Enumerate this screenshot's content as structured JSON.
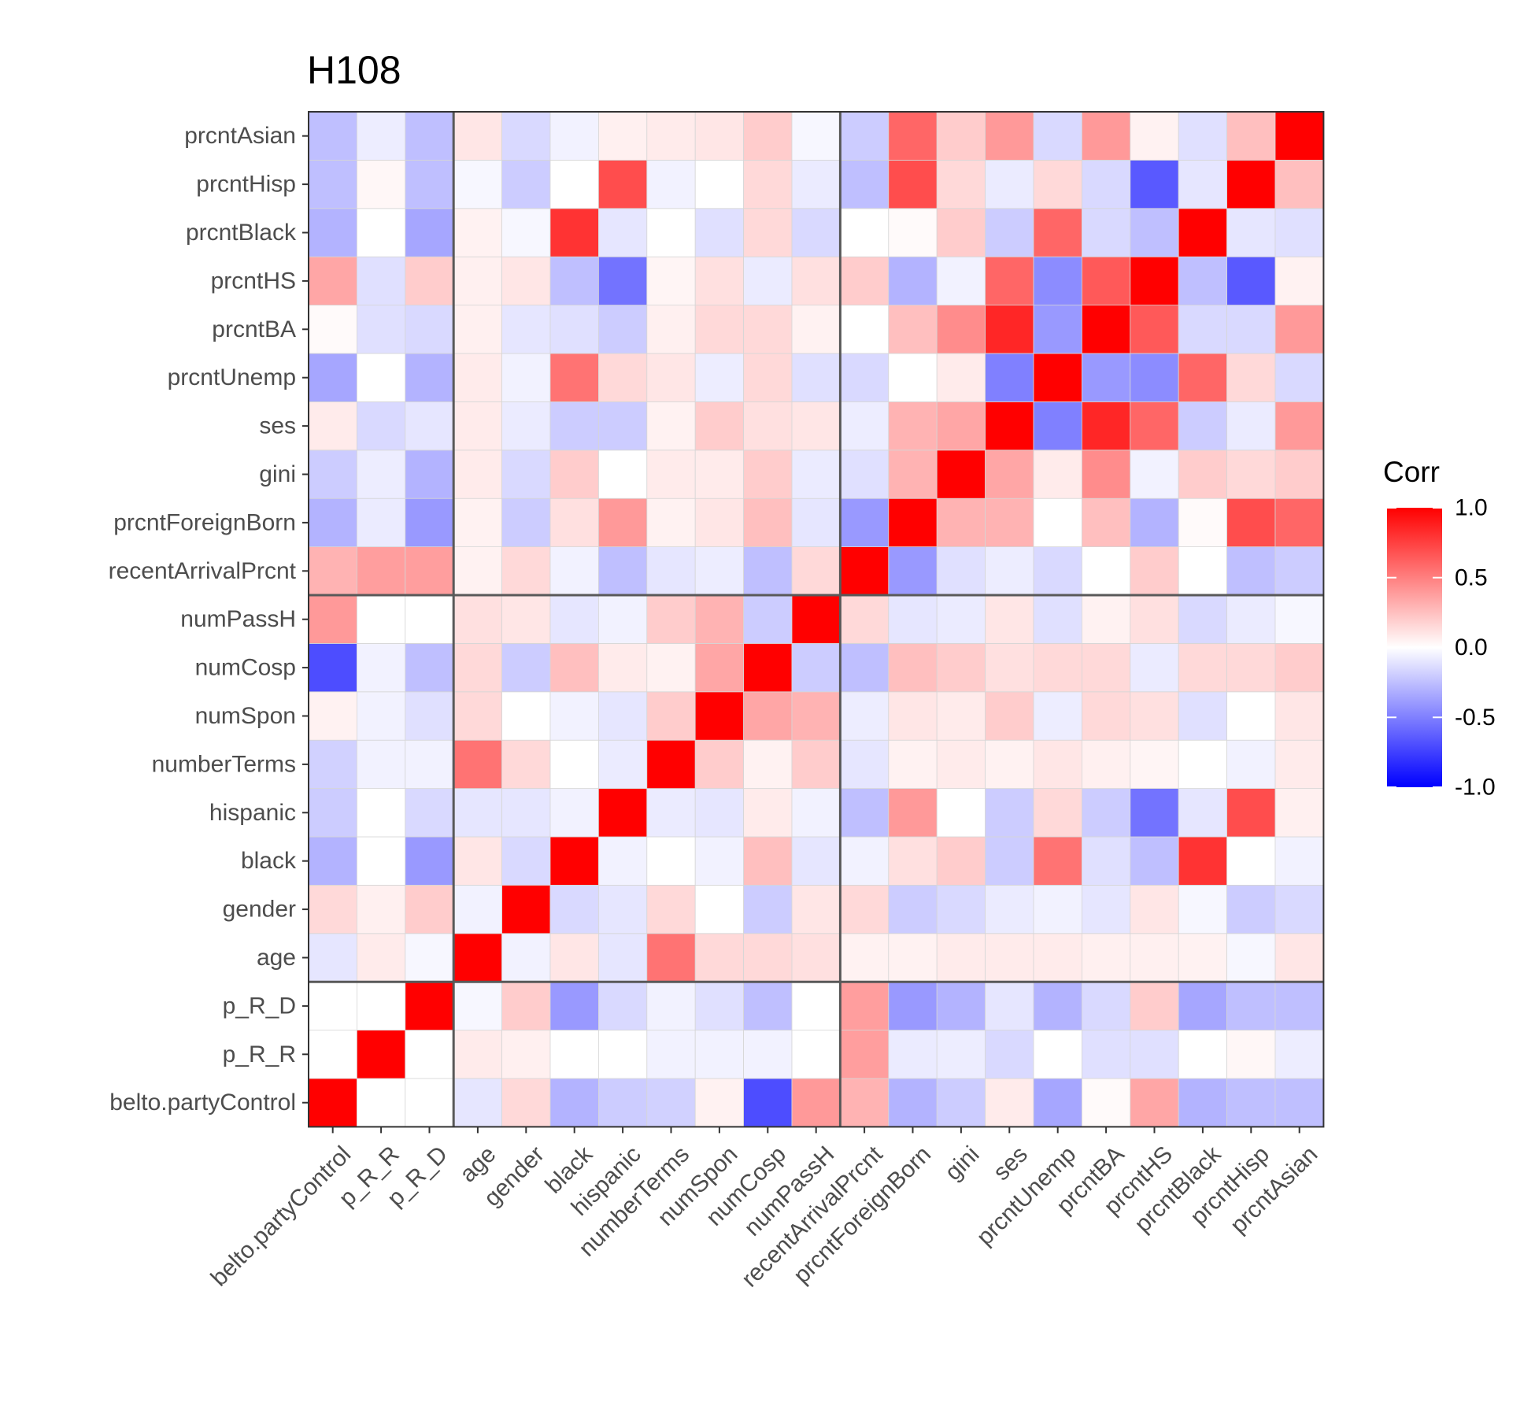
{
  "chart_data": {
    "type": "heatmap",
    "title": "H108",
    "legend": {
      "title": "Corr",
      "ticks": [
        "1.0",
        "0.5",
        "0.0",
        "-0.5",
        "-1.0"
      ],
      "tick_values": [
        1.0,
        0.5,
        0.0,
        -0.5,
        -1.0
      ],
      "range": [
        -1.0,
        1.0
      ],
      "placement": "right"
    },
    "colors": {
      "low": "#0000FF",
      "mid": "#FFFFFF",
      "high": "#FF0000"
    },
    "variables": [
      "belto.partyControl",
      "p_R_R",
      "p_R_D",
      "age",
      "gender",
      "black",
      "hispanic",
      "numberTerms",
      "numSpon",
      "numCosp",
      "numPassH",
      "recentArrivalPrcnt",
      "prcntForeignBorn",
      "gini",
      "ses",
      "prcntUnemp",
      "prcntBA",
      "prcntHS",
      "prcntBlack",
      "prcntHisp",
      "prcntAsian"
    ],
    "group_boundaries_after_index": [
      2,
      10
    ],
    "matrix": [
      [
        1.0,
        0.0,
        0.0,
        -0.1,
        0.15,
        -0.3,
        -0.2,
        -0.18,
        0.05,
        -0.7,
        0.4,
        0.3,
        -0.3,
        -0.2,
        0.08,
        -0.35,
        0.02,
        0.35,
        -0.3,
        -0.25,
        -0.25
      ],
      [
        0.0,
        1.0,
        0.0,
        0.08,
        0.06,
        0.0,
        0.0,
        -0.05,
        -0.05,
        -0.05,
        0.0,
        0.38,
        -0.08,
        -0.07,
        -0.15,
        0.0,
        -0.12,
        -0.12,
        0.0,
        0.03,
        -0.07
      ],
      [
        0.0,
        0.0,
        1.0,
        -0.03,
        0.2,
        -0.4,
        -0.15,
        -0.05,
        -0.12,
        -0.25,
        0.0,
        0.38,
        -0.4,
        -0.3,
        -0.1,
        -0.3,
        -0.15,
        0.2,
        -0.35,
        -0.25,
        -0.25
      ],
      [
        -0.1,
        0.08,
        -0.03,
        1.0,
        -0.05,
        0.1,
        -0.1,
        0.55,
        0.15,
        0.15,
        0.12,
        0.05,
        0.05,
        0.08,
        0.08,
        0.08,
        0.06,
        0.06,
        0.05,
        -0.03,
        0.1
      ],
      [
        0.15,
        0.06,
        0.2,
        -0.05,
        1.0,
        -0.15,
        -0.1,
        0.15,
        0.0,
        -0.2,
        0.1,
        0.15,
        -0.2,
        -0.15,
        -0.08,
        -0.05,
        -0.1,
        0.1,
        -0.03,
        -0.2,
        -0.15
      ],
      [
        -0.3,
        0.0,
        -0.4,
        0.1,
        -0.15,
        1.0,
        -0.05,
        0.0,
        -0.05,
        0.25,
        -0.1,
        -0.05,
        0.12,
        0.2,
        -0.2,
        0.55,
        -0.12,
        -0.25,
        0.8,
        0.0,
        -0.05
      ],
      [
        -0.2,
        0.0,
        -0.15,
        -0.1,
        -0.1,
        -0.05,
        1.0,
        -0.08,
        -0.1,
        0.08,
        -0.05,
        -0.25,
        0.4,
        0.0,
        -0.2,
        0.15,
        -0.2,
        -0.55,
        -0.1,
        0.7,
        0.06
      ],
      [
        -0.18,
        -0.05,
        -0.05,
        0.55,
        0.15,
        0.0,
        -0.08,
        1.0,
        0.2,
        0.05,
        0.2,
        -0.1,
        0.05,
        0.08,
        0.05,
        0.1,
        0.06,
        0.04,
        0.0,
        -0.05,
        0.08
      ],
      [
        0.05,
        -0.05,
        -0.12,
        0.15,
        0.0,
        -0.05,
        -0.1,
        0.2,
        1.0,
        0.35,
        0.3,
        -0.07,
        0.1,
        0.08,
        0.2,
        -0.07,
        0.15,
        0.12,
        -0.12,
        0.0,
        0.1
      ],
      [
        -0.7,
        -0.05,
        -0.25,
        0.15,
        -0.2,
        0.25,
        0.08,
        0.05,
        0.35,
        1.0,
        -0.2,
        -0.25,
        0.25,
        0.2,
        0.12,
        0.15,
        0.15,
        -0.08,
        0.15,
        0.15,
        0.2
      ],
      [
        0.4,
        0.0,
        0.0,
        0.12,
        0.1,
        -0.1,
        -0.05,
        0.2,
        0.3,
        -0.2,
        1.0,
        0.15,
        -0.1,
        -0.08,
        0.1,
        -0.12,
        0.05,
        0.12,
        -0.15,
        -0.08,
        -0.03
      ],
      [
        0.3,
        0.38,
        0.38,
        0.05,
        0.15,
        -0.05,
        -0.25,
        -0.1,
        -0.07,
        -0.25,
        0.15,
        1.0,
        -0.4,
        -0.12,
        -0.07,
        -0.15,
        0.0,
        0.2,
        0.0,
        -0.25,
        -0.2
      ],
      [
        -0.3,
        -0.08,
        -0.4,
        0.05,
        -0.2,
        0.12,
        0.4,
        0.05,
        0.1,
        0.25,
        -0.1,
        -0.4,
        1.0,
        0.3,
        0.3,
        0.0,
        0.25,
        -0.3,
        0.02,
        0.7,
        0.6
      ],
      [
        -0.2,
        -0.07,
        -0.3,
        0.08,
        -0.15,
        0.2,
        0.0,
        0.08,
        0.08,
        0.2,
        -0.08,
        -0.12,
        0.3,
        1.0,
        0.35,
        0.08,
        0.45,
        -0.05,
        0.2,
        0.15,
        0.2
      ],
      [
        0.08,
        -0.15,
        -0.1,
        0.08,
        -0.08,
        -0.2,
        -0.2,
        0.05,
        0.2,
        0.12,
        0.1,
        -0.07,
        0.3,
        0.35,
        1.0,
        -0.5,
        0.85,
        0.6,
        -0.2,
        -0.08,
        0.4
      ],
      [
        -0.35,
        0.0,
        -0.3,
        0.08,
        -0.05,
        0.55,
        0.15,
        0.1,
        -0.07,
        0.15,
        -0.12,
        -0.15,
        0.0,
        0.08,
        -0.5,
        1.0,
        -0.4,
        -0.45,
        0.6,
        0.15,
        -0.15
      ],
      [
        0.02,
        -0.12,
        -0.15,
        0.06,
        -0.1,
        -0.12,
        -0.2,
        0.06,
        0.15,
        0.15,
        0.05,
        0.0,
        0.25,
        0.45,
        0.85,
        -0.4,
        1.0,
        0.65,
        -0.15,
        -0.15,
        0.4
      ],
      [
        0.35,
        -0.12,
        0.2,
        0.06,
        0.1,
        -0.25,
        -0.55,
        0.04,
        0.12,
        -0.08,
        0.12,
        0.2,
        -0.3,
        -0.05,
        0.6,
        -0.45,
        0.65,
        1.0,
        -0.25,
        -0.65,
        0.05
      ],
      [
        -0.3,
        0.0,
        -0.35,
        0.05,
        -0.03,
        0.8,
        -0.1,
        0.0,
        -0.12,
        0.15,
        -0.15,
        0.0,
        0.02,
        0.2,
        -0.2,
        0.6,
        -0.15,
        -0.25,
        1.0,
        -0.1,
        -0.12
      ],
      [
        -0.25,
        0.03,
        -0.25,
        -0.03,
        -0.2,
        0.0,
        0.7,
        -0.05,
        0.0,
        0.15,
        -0.08,
        -0.25,
        0.7,
        0.15,
        -0.08,
        0.15,
        -0.15,
        -0.65,
        -0.1,
        1.0,
        0.25
      ],
      [
        -0.25,
        -0.07,
        -0.25,
        0.1,
        -0.15,
        -0.05,
        0.06,
        0.08,
        0.1,
        0.2,
        -0.03,
        -0.2,
        0.6,
        0.2,
        0.4,
        -0.15,
        0.4,
        0.05,
        -0.12,
        0.25,
        1.0
      ]
    ]
  }
}
